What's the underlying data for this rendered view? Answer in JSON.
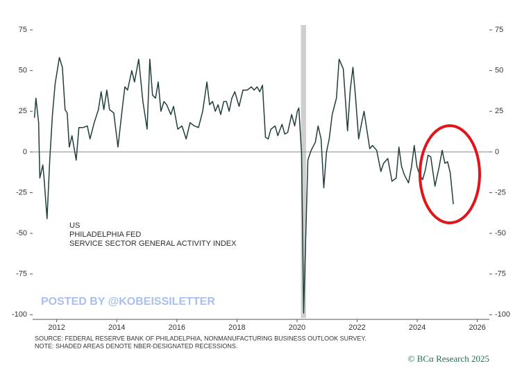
{
  "chart_data": {
    "type": "line",
    "annotation_lines": [
      "US",
      "PHILADELPHIA FED",
      "SERVICE SECTOR GENERAL ACTIVITY INDEX"
    ],
    "watermark": "POSTED BY @KOBEISSILETTER",
    "source_lines": [
      "SOURCE: FEDERAL RESERVE BANK OF PHILADELPHIA, NONMANUFACTURING BUSINESS OUTLOOK SURVEY.",
      "NOTE: SHADED AREAS DENOTE NBER-DESIGNATED RECESSIONS."
    ],
    "credit": "© BCα Research 2025",
    "color": "#1f3d3a",
    "recessions": [
      [
        2020.13,
        2020.3
      ]
    ],
    "x": [
      2011.26,
      2011.31,
      2011.4,
      2011.44,
      2011.54,
      2011.58,
      2011.68,
      2011.77,
      2011.86,
      2011.95,
      2012.09,
      2012.19,
      2012.28,
      2012.35,
      2012.42,
      2012.51,
      2012.65,
      2012.74,
      2012.88,
      2013.02,
      2013.11,
      2013.25,
      2013.39,
      2013.48,
      2013.57,
      2013.67,
      2013.76,
      2013.9,
      2014.04,
      2014.18,
      2014.27,
      2014.36,
      2014.5,
      2014.59,
      2014.73,
      2014.87,
      2015.01,
      2015.1,
      2015.19,
      2015.29,
      2015.38,
      2015.47,
      2015.57,
      2015.66,
      2015.8,
      2015.89,
      2016.03,
      2016.17,
      2016.31,
      2016.44,
      2016.58,
      2016.72,
      2016.86,
      2017.0,
      2017.09,
      2017.19,
      2017.28,
      2017.37,
      2017.46,
      2017.56,
      2017.65,
      2017.74,
      2017.83,
      2017.93,
      2018.07,
      2018.2,
      2018.34,
      2018.48,
      2018.57,
      2018.67,
      2018.76,
      2018.85,
      2018.95,
      2019.04,
      2019.13,
      2019.27,
      2019.36,
      2019.5,
      2019.59,
      2019.69,
      2019.82,
      2019.92,
      2020.01,
      2020.06,
      2020.15,
      2020.22,
      2020.36,
      2020.47,
      2020.61,
      2020.7,
      2020.8,
      2020.89,
      2020.98,
      2021.07,
      2021.17,
      2021.31,
      2021.4,
      2021.54,
      2021.68,
      2021.77,
      2021.86,
      2021.95,
      2022.05,
      2022.14,
      2022.23,
      2022.32,
      2022.42,
      2022.51,
      2022.65,
      2022.79,
      2022.88,
      2023.02,
      2023.16,
      2023.3,
      2023.39,
      2023.48,
      2023.57,
      2023.71,
      2023.81,
      2023.9,
      2023.99,
      2024.08,
      2024.18,
      2024.27,
      2024.36,
      2024.45,
      2024.59,
      2024.73,
      2024.83,
      2024.92,
      2025.01,
      2025.1,
      2025.2
    ],
    "values": [
      21,
      33,
      18,
      -16,
      -8,
      -16,
      -41,
      -5,
      23,
      42,
      58,
      52,
      26,
      24,
      3,
      10,
      -5,
      15,
      15,
      16,
      8,
      18,
      26,
      37,
      26,
      38,
      26,
      24,
      3,
      26,
      40,
      38,
      50,
      43,
      57,
      31,
      14,
      57,
      35,
      33,
      43,
      25,
      31,
      29,
      23,
      28,
      14,
      16,
      8,
      18,
      16,
      15,
      25,
      43,
      29,
      31,
      25,
      29,
      23,
      31,
      31,
      25,
      33,
      37,
      28,
      38,
      38,
      40,
      38,
      40,
      37,
      41,
      9,
      8,
      14,
      16,
      10,
      17,
      11,
      12,
      23,
      16,
      25,
      27,
      -1,
      -99,
      -5,
      1,
      6,
      16,
      8,
      -22,
      0,
      8,
      23,
      33,
      57,
      51,
      13,
      38,
      52,
      33,
      8,
      17,
      25,
      14,
      2,
      4,
      1,
      -12,
      -7,
      -4,
      -18,
      -16,
      3,
      -9,
      -14,
      -19,
      -9,
      4,
      -9,
      -14,
      -17,
      -11,
      -2,
      -3,
      -21,
      -9,
      1,
      -7,
      -6,
      -13,
      -32
    ],
    "xlim": [
      2011.2,
      2026.4
    ],
    "xticks": [
      2012,
      2014,
      2016,
      2018,
      2020,
      2022,
      2024,
      2026
    ],
    "ylim": [
      -102,
      78
    ],
    "yticks": [
      75,
      50,
      25,
      0,
      -25,
      -50,
      -75,
      -100
    ],
    "y2lim": [
      -102,
      78
    ],
    "y2ticks": [
      75,
      50,
      25,
      0,
      -25,
      -50,
      -75,
      -100
    ]
  }
}
